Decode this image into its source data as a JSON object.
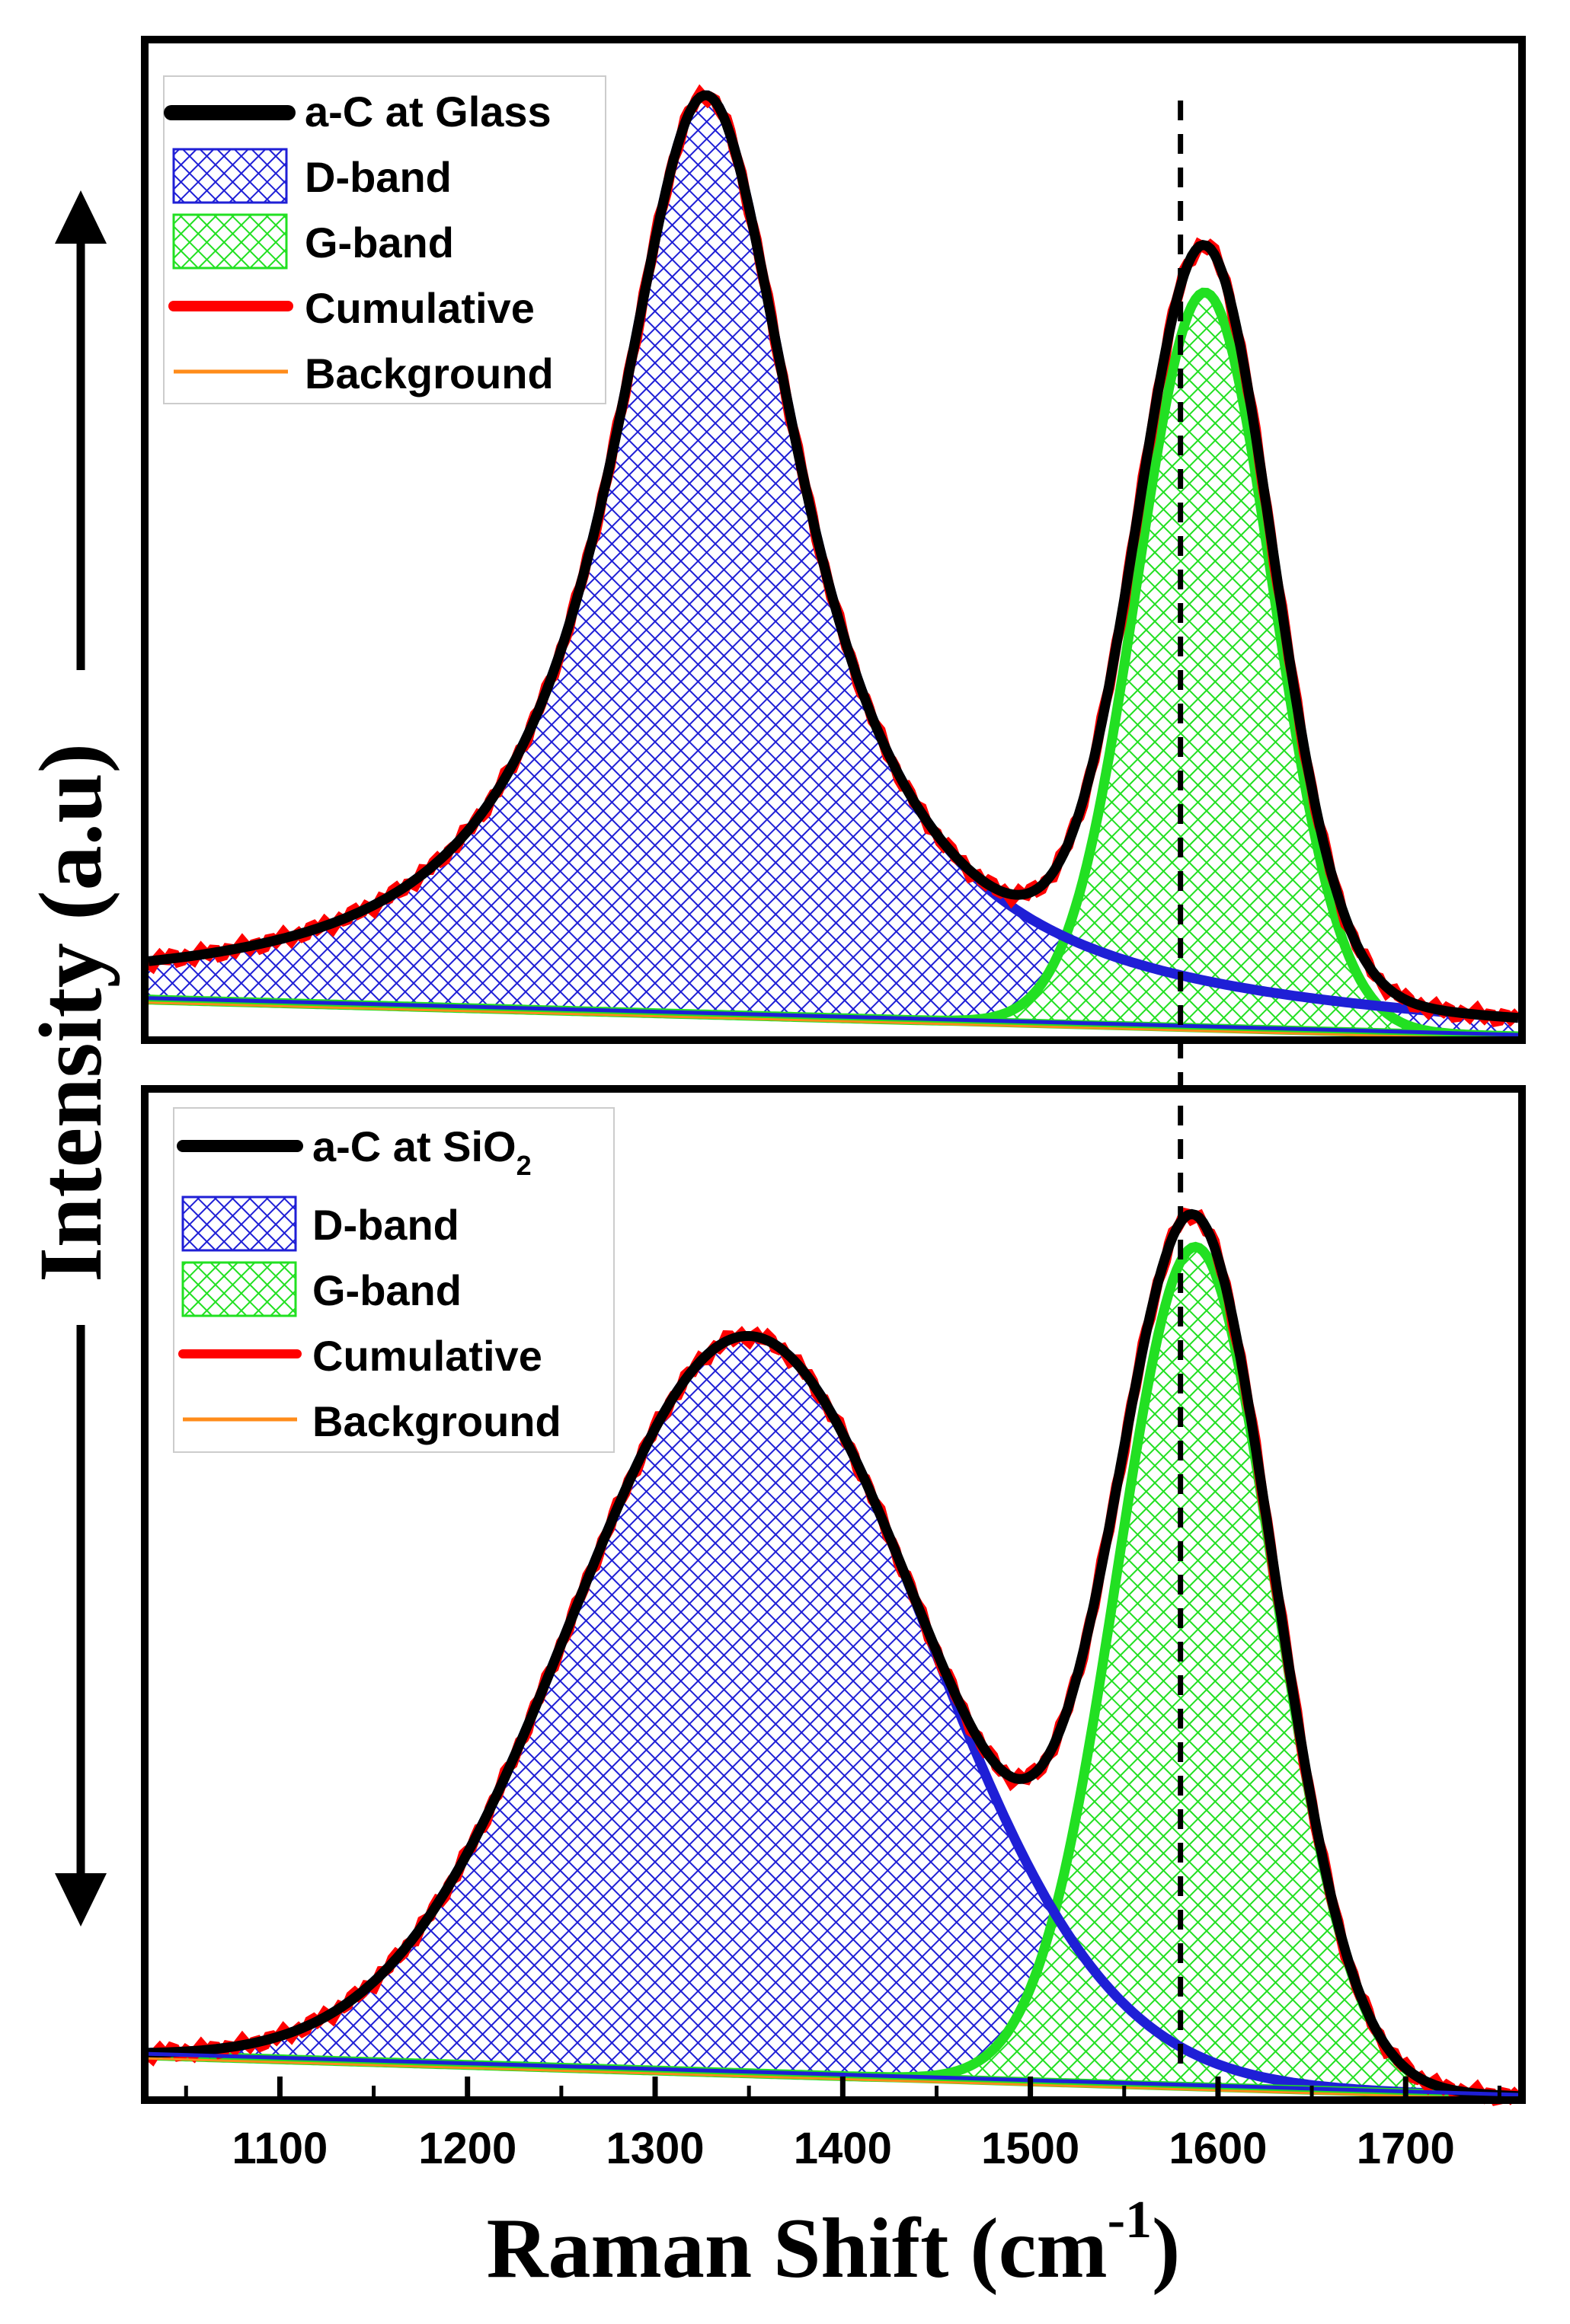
{
  "chart_data": {
    "type": "area",
    "title": "",
    "xlabel": "Raman Shift (cm",
    "xlabel_sup": "-1",
    "xlabel_close": ")",
    "ylabel": "Intensity (a.u)",
    "xlim": [
      1030,
      1760
    ],
    "xticks": [
      1100,
      1200,
      1300,
      1400,
      1500,
      1600,
      1700
    ],
    "reference_line_x": 1580,
    "colors": {
      "data": "#000000",
      "d_band": "#1f1fd6",
      "g_band": "#22e022",
      "cumulative": "#ff0000",
      "background": "#ff8c1a",
      "d_band_hatch_bg": "#ffffff",
      "g_band_hatch_bg": "#ffffff"
    },
    "panels": [
      {
        "id": "top",
        "legend": {
          "data_label": "a-C at Glass",
          "data_label_sub": "",
          "d_label": "D-band",
          "g_label": "G-band",
          "cum_label": "Cumulative",
          "bg_label": "Background"
        },
        "ylim": [
          0,
          1.08
        ],
        "background_line": [
          [
            1030,
            0.04
          ],
          [
            1760,
            0.0
          ]
        ],
        "d_band": {
          "center": 1327,
          "height": 1.0,
          "hwhm": 62,
          "shape": "lorentzian"
        },
        "g_band": {
          "center": 1593,
          "height": 0.8,
          "sigma": 36,
          "shape": "gaussian"
        },
        "d_band_tail_floor": 0.02
      },
      {
        "id": "bottom",
        "legend": {
          "data_label": "a-C at SiO",
          "data_label_sub": "2",
          "d_label": "D-band",
          "g_label": "G-band",
          "cum_label": "Cumulative",
          "bg_label": "Background"
        },
        "ylim": [
          0,
          0.98
        ],
        "background_line": [
          [
            1030,
            0.04
          ],
          [
            1760,
            0.0
          ]
        ],
        "d_band": {
          "center": 1350,
          "height": 0.72,
          "sigma": 95,
          "shape": "gaussian"
        },
        "g_band": {
          "center": 1588,
          "height": 0.82,
          "sigma": 42,
          "shape": "gaussian"
        }
      }
    ]
  }
}
